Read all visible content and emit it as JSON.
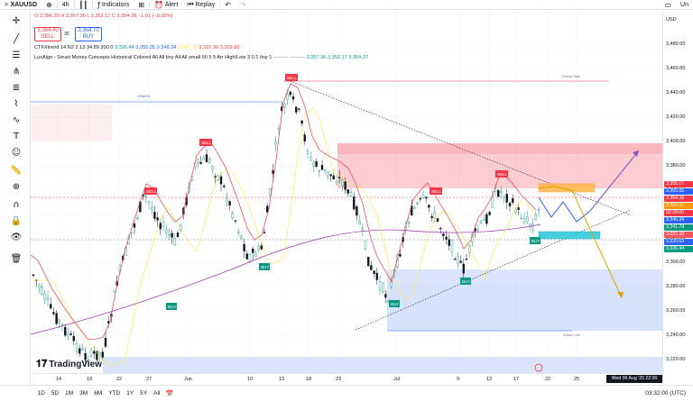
{
  "topbar": {
    "symbol": "XAUUSD",
    "interval": "4h",
    "indicators_label": "Indicators",
    "alert_label": "Alert",
    "replay_label": "Replay",
    "user_label": "Un"
  },
  "legend": {
    "ohlc": "O 3,356.29  H 3,357.36  L 3,352.17  C 3,354.38  −1.91 (−0.06%)",
    "sell_price": "3,354.40",
    "sell_label": "SELL",
    "spread": "30",
    "buy_price": "3,354.70",
    "buy_label": "BUY",
    "indicator1_name": "CTFXtrend 14 N2 2 13 34 89 200 0",
    "indicator1_values": [
      "3,326.44",
      "3,355.05",
      "3,346.34",
      "3,341.78",
      "3,337.36",
      "3,329.80"
    ],
    "indicator2_name": "LuxAlgo - Smart Money Concepts Historical Colored All All tiny All All small 50 5 5 Atr High/Low 3 0.1 tiny 1",
    "indicator2_values": [
      "3,357.36",
      "3,352.17",
      "3,354.37"
    ]
  },
  "price_axis": {
    "currency": "USD",
    "ticks": [
      "3,480.00",
      "3,460.00",
      "3,440.00",
      "3,420.00",
      "3,400.00",
      "3,380.00",
      "3,360.00",
      "3,340.00",
      "3,320.00",
      "3,300.00",
      "3,280.00",
      "3,260.00",
      "3,240.00",
      "3,220.00"
    ],
    "labels": [
      {
        "text": "3,355.17",
        "color": "#f23645"
      },
      {
        "text": "3,355.05",
        "color": "#2962ff"
      },
      {
        "text": "3,354.38",
        "color": "#f23645"
      },
      {
        "text": "3,354.37",
        "color": "#ff9800"
      },
      {
        "text": "02:28:00",
        "color": "#f23645"
      },
      {
        "text": "3,346.34",
        "color": "#2962ff"
      },
      {
        "text": "3,341.78",
        "color": "#089981"
      },
      {
        "text": "3,337.36",
        "color": "#f7525f"
      },
      {
        "text": "3,320.03",
        "color": "#2962ff"
      },
      {
        "text": "3,326.44",
        "color": "#089981"
      }
    ]
  },
  "time_axis": {
    "ticks": [
      "14",
      "19",
      "22",
      "27",
      "Jun",
      "10",
      "13",
      "18",
      "23",
      "Jul",
      "9",
      "13",
      "17",
      "22",
      "25"
    ],
    "current_date": "Wed 06 Aug '25  22:00"
  },
  "bottombar": {
    "ranges": [
      "1D",
      "5D",
      "1M",
      "3M",
      "6M",
      "YTD",
      "1Y",
      "5Y",
      "All"
    ],
    "clock": "03:32:00 (UTC)"
  },
  "chart_labels": {
    "choch": "CHoCH",
    "strong_high": "Strong High",
    "weak_low": "Weak Low",
    "sell": "SELL",
    "buy": "BUY"
  },
  "branding": {
    "logo_text": "TradingView"
  },
  "icons": [
    "search-icon",
    "plus-icon",
    "crosshair-icon",
    "trendline-icon",
    "fib-icon",
    "brush-icon",
    "text-icon",
    "smiley-icon",
    "ruler-icon",
    "zoom-icon",
    "magnet-icon",
    "lock-icon",
    "eye-icon",
    "trash-icon"
  ]
}
